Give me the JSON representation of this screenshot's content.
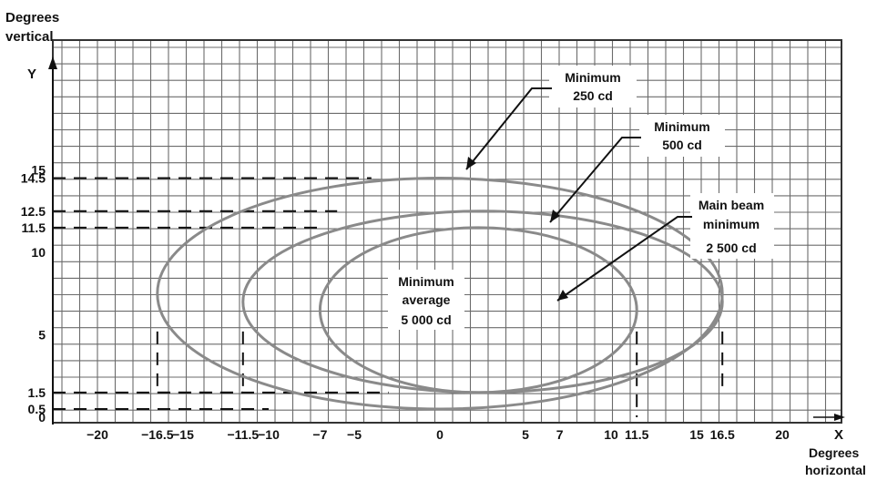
{
  "axes": {
    "y_title_line1": "Degrees",
    "y_title_line2": "vertical",
    "y_letter": "Y",
    "x_title_line1": "Degrees",
    "x_title_line2": "horizontal",
    "x_letter": "X",
    "x_ticks": [
      {
        "value": -20,
        "label": "−20"
      },
      {
        "value": -16.5,
        "label": "−16.5"
      },
      {
        "value": -15,
        "label": "−15"
      },
      {
        "value": -11.5,
        "label": "−11.5"
      },
      {
        "value": -10,
        "label": "−10"
      },
      {
        "value": -7,
        "label": "−7"
      },
      {
        "value": -5,
        "label": "−5"
      },
      {
        "value": 0,
        "label": "0"
      },
      {
        "value": 5,
        "label": "5"
      },
      {
        "value": 7,
        "label": "7"
      },
      {
        "value": 10,
        "label": "10"
      },
      {
        "value": 11.5,
        "label": "11.5"
      },
      {
        "value": 15,
        "label": "15"
      },
      {
        "value": 16.5,
        "label": "16.5"
      },
      {
        "value": 20,
        "label": "20"
      }
    ],
    "y_ticks": [
      {
        "value": 15,
        "label": "15"
      },
      {
        "value": 14.5,
        "label": "14.5"
      },
      {
        "value": 12.5,
        "label": "12.5"
      },
      {
        "value": 11.5,
        "label": "11.5"
      },
      {
        "value": 10,
        "label": "10"
      },
      {
        "value": 5,
        "label": "5"
      },
      {
        "value": 1.5,
        "label": "1.5"
      },
      {
        "value": 0.5,
        "label": "0.5"
      },
      {
        "value": 0,
        "label": "0"
      }
    ]
  },
  "contours": [
    {
      "id": "min-250",
      "label_line1": "Minimum",
      "label_line2": "250 cd",
      "label_line3": "",
      "x_extent": [
        -16.5,
        16.5
      ],
      "y_extent": [
        0.5,
        14.5
      ]
    },
    {
      "id": "min-500",
      "label_line1": "Minimum",
      "label_line2": "500 cd",
      "label_line3": "",
      "x_extent": [
        -11.5,
        16.5
      ],
      "y_extent": [
        1.5,
        12.5
      ]
    },
    {
      "id": "main-beam-2500",
      "label_line1": "Main beam",
      "label_line2": "minimum",
      "label_line3": "2 500 cd",
      "x_extent": [
        -7,
        11.5
      ],
      "y_extent": [
        1.5,
        11.5
      ]
    }
  ],
  "center_label": {
    "line1": "Minimum",
    "line2": "average",
    "line3": "5 000 cd"
  },
  "colors": {
    "grid": "#6b6b6b",
    "contour": "#8a8a8a",
    "text": "#111111"
  }
}
